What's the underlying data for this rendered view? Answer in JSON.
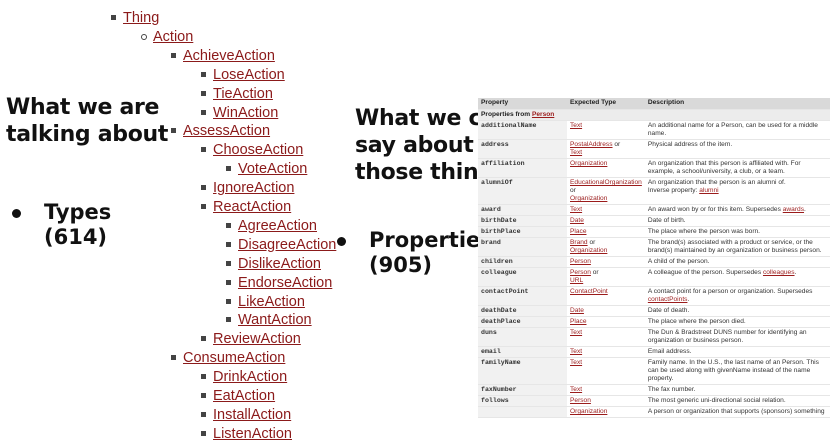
{
  "left": {
    "heading_line1": "What we are",
    "heading_line2": "talking about",
    "bullet_line1": "Types",
    "bullet_line2": "(614)"
  },
  "middle": {
    "heading_line1": "What we can",
    "heading_line2": "say about",
    "heading_line3": "those things",
    "bullet_line1": "Properties",
    "bullet_line2": "(905)"
  },
  "tree": [
    {
      "label": "Thing",
      "level": 0
    },
    {
      "label": "Action",
      "level": 1
    },
    {
      "label": "AchieveAction",
      "level": 2
    },
    {
      "label": "LoseAction",
      "level": 3
    },
    {
      "label": "TieAction",
      "level": 3
    },
    {
      "label": "WinAction",
      "level": 3
    },
    {
      "label": "AssessAction",
      "level": 2
    },
    {
      "label": "ChooseAction",
      "level": 3
    },
    {
      "label": "VoteAction",
      "level": 4
    },
    {
      "label": "IgnoreAction",
      "level": 3
    },
    {
      "label": "ReactAction",
      "level": 3
    },
    {
      "label": "AgreeAction",
      "level": 4
    },
    {
      "label": "DisagreeAction",
      "level": 4
    },
    {
      "label": "DislikeAction",
      "level": 4
    },
    {
      "label": "EndorseAction",
      "level": 4
    },
    {
      "label": "LikeAction",
      "level": 4
    },
    {
      "label": "WantAction",
      "level": 4
    },
    {
      "label": "ReviewAction",
      "level": 3
    },
    {
      "label": "ConsumeAction",
      "level": 2
    },
    {
      "label": "DrinkAction",
      "level": 3
    },
    {
      "label": "EatAction",
      "level": 3
    },
    {
      "label": "InstallAction",
      "level": 3
    },
    {
      "label": "ListenAction",
      "level": 3
    }
  ],
  "table": {
    "headers": {
      "property": "Property",
      "type": "Expected Type",
      "description": "Description"
    },
    "section_prefix": "Properties from",
    "section_link": "Person",
    "rows": [
      {
        "name": "additionalName",
        "types": [
          "Text"
        ],
        "desc": "An additional name for a Person, can be used for a middle name."
      },
      {
        "name": "address",
        "types": [
          "PostalAddress",
          "Text"
        ],
        "desc": "Physical address of the item."
      },
      {
        "name": "affiliation",
        "types": [
          "Organization"
        ],
        "desc": "An organization that this person is affiliated with. For example, a school/university, a club, or a team."
      },
      {
        "name": "alumniOf",
        "types": [
          "EducationalOrganization",
          "Organization"
        ],
        "desc": "An organization that the person is an alumni of.",
        "desc2": "Inverse property:",
        "desc2_link": "alumni"
      },
      {
        "name": "award",
        "types": [
          "Text"
        ],
        "desc": "An award won by or for this item. Supersedes",
        "desc_link": "awards"
      },
      {
        "name": "birthDate",
        "types": [
          "Date"
        ],
        "desc": "Date of birth."
      },
      {
        "name": "birthPlace",
        "types": [
          "Place"
        ],
        "desc": "The place where the person was born."
      },
      {
        "name": "brand",
        "types": [
          "Brand",
          "Organization"
        ],
        "desc": "The brand(s) associated with a product or service, or the brand(s) maintained by an organization or business person."
      },
      {
        "name": "children",
        "types": [
          "Person"
        ],
        "desc": "A child of the person."
      },
      {
        "name": "colleague",
        "types": [
          "Person",
          "URL"
        ],
        "desc": "A colleague of the person. Supersedes",
        "desc_link": "colleagues"
      },
      {
        "name": "contactPoint",
        "types": [
          "ContactPoint"
        ],
        "desc": "A contact point for a person or organization. Supersedes",
        "desc_link": "contactPoints"
      },
      {
        "name": "deathDate",
        "types": [
          "Date"
        ],
        "desc": "Date of death."
      },
      {
        "name": "deathPlace",
        "types": [
          "Place"
        ],
        "desc": "The place where the person died."
      },
      {
        "name": "duns",
        "types": [
          "Text"
        ],
        "desc": "The Dun & Bradstreet DUNS number for identifying an organization or business person."
      },
      {
        "name": "email",
        "types": [
          "Text"
        ],
        "desc": "Email address."
      },
      {
        "name": "familyName",
        "types": [
          "Text"
        ],
        "desc": "Family name. In the U.S., the last name of an Person. This can be used along with givenName instead of the name property."
      },
      {
        "name": "faxNumber",
        "types": [
          "Text"
        ],
        "desc": "The fax number."
      },
      {
        "name": "follows",
        "types": [
          "Person"
        ],
        "desc": "The most generic uni-directional social relation."
      },
      {
        "name": "",
        "types": [
          "Organization"
        ],
        "desc": "A person or organization that supports (sponsors) something"
      }
    ],
    "or_word": "or"
  }
}
